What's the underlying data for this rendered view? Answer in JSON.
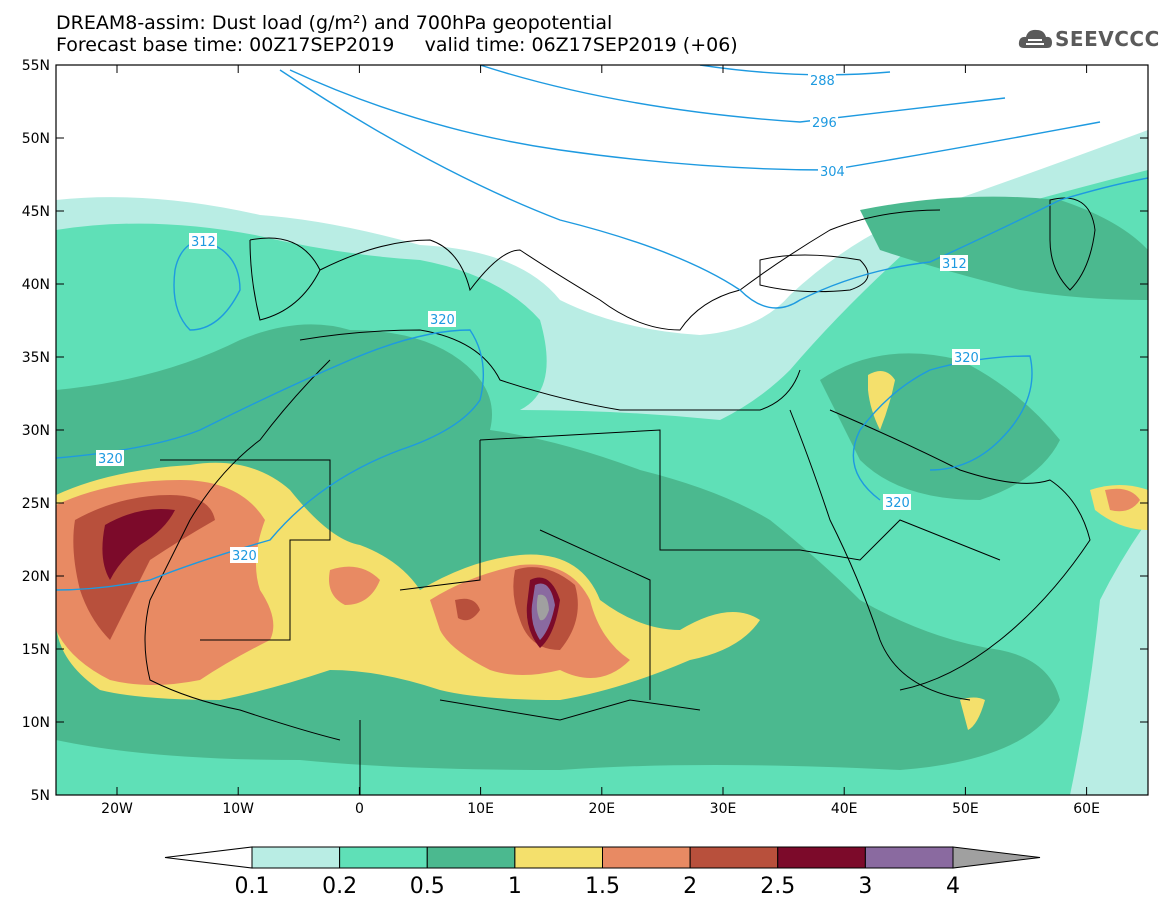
{
  "header": {
    "title_line1": "DREAM8-assim: Dust load (g/m²) and 700hPa geopotential",
    "title_line2": "Forecast base time: 00Z17SEP2019     valid time: 06Z17SEP2019 (+06)",
    "logo_text": "SEEVCCC"
  },
  "map": {
    "lat_labels": [
      "55N",
      "50N",
      "45N",
      "40N",
      "35N",
      "30N",
      "25N",
      "20N",
      "15N",
      "10N",
      "5N"
    ],
    "lon_labels": [
      "20W",
      "10W",
      "0",
      "10E",
      "20E",
      "30E",
      "40E",
      "50E",
      "60E"
    ],
    "contour_labels": [
      "288",
      "296",
      "304",
      "312",
      "312",
      "320",
      "320",
      "320",
      "320",
      "320"
    ],
    "colors": {
      "ocean": "#ffffff",
      "level_0_1": "#b9ede4",
      "level_0_2": "#5fe0b7",
      "level_0_5": "#4bb98f",
      "level_1": "#f4e06c",
      "level_1_5": "#e88a63",
      "level_2": "#b8503c",
      "level_2_5": "#7c0a2a",
      "level_3": "#8a6aa0",
      "level_4": "#a0a0a0",
      "contour": "#1e9ae0"
    }
  },
  "colorbar": {
    "labels": [
      "0.1",
      "0.2",
      "0.5",
      "1",
      "1.5",
      "2",
      "2.5",
      "3",
      "4"
    ],
    "colors": [
      "#ffffff",
      "#b9ede4",
      "#5fe0b7",
      "#4bb98f",
      "#f4e06c",
      "#e88a63",
      "#b8503c",
      "#7c0a2a",
      "#8a6aa0",
      "#a0a0a0"
    ]
  }
}
